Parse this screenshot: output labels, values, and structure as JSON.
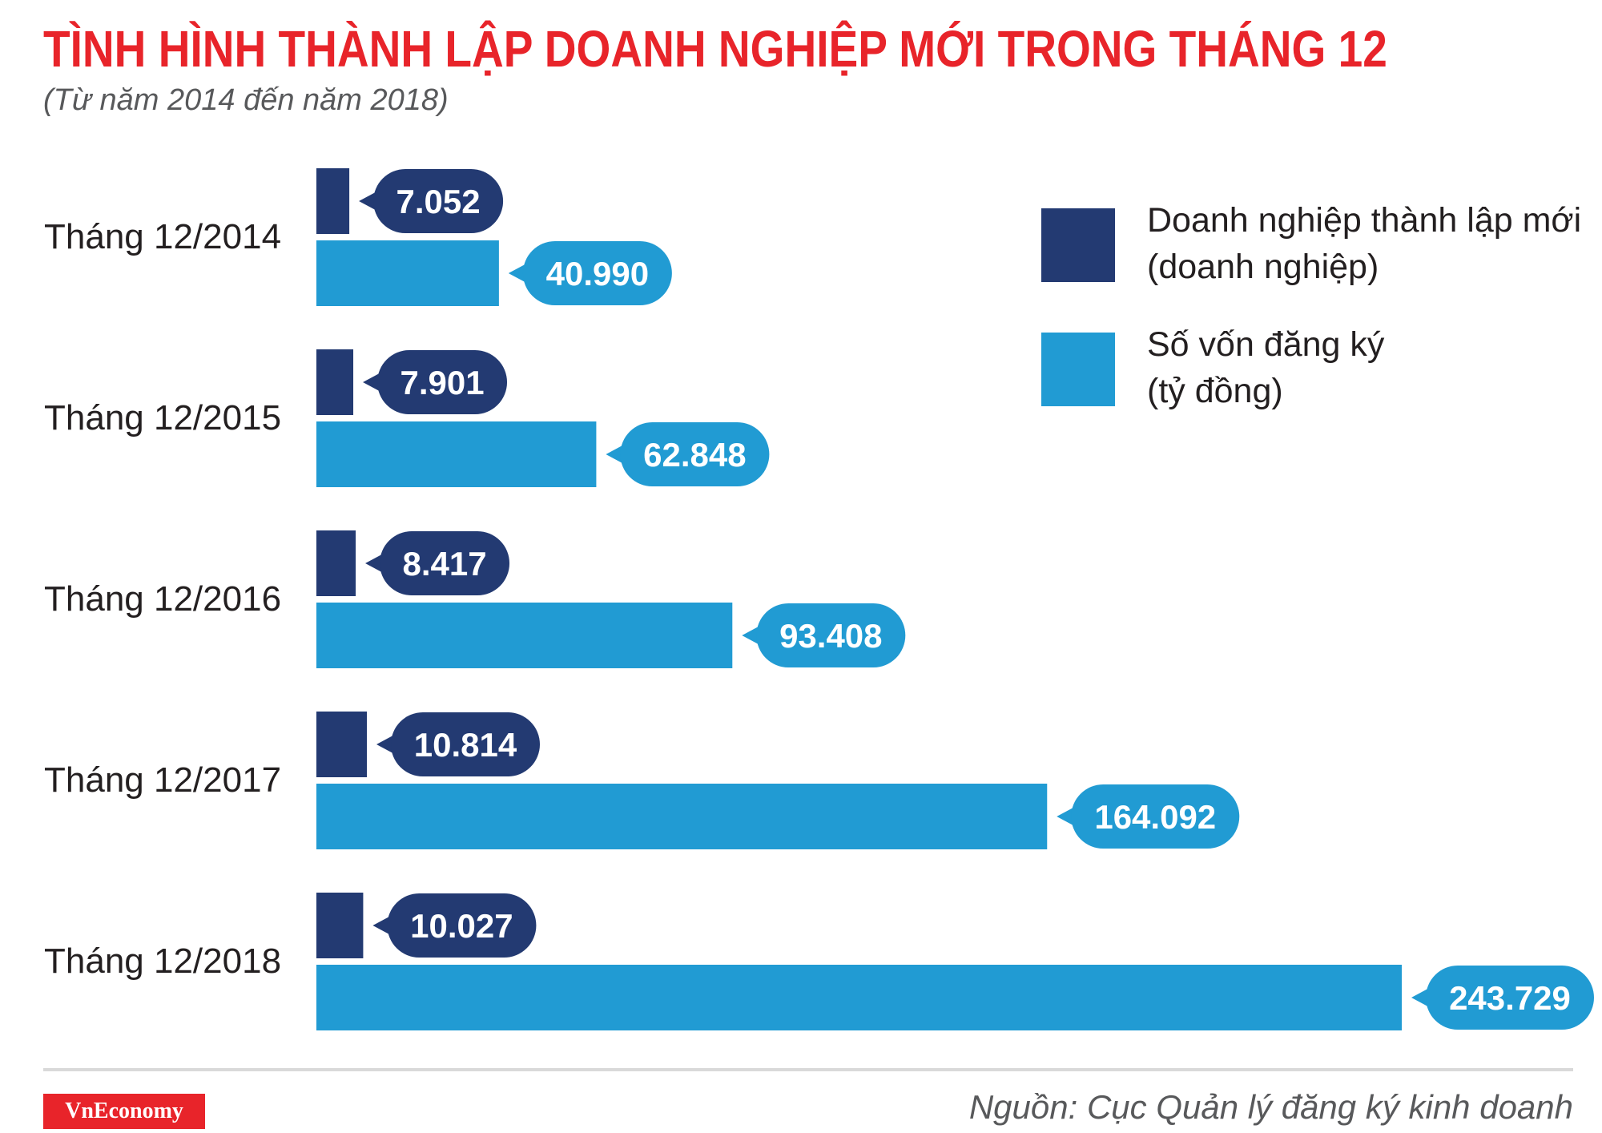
{
  "title": "TÌNH HÌNH THÀNH LẬP DOANH NGHIỆP MỚI TRONG THÁNG 12",
  "subtitle": "(Từ năm 2014 đến năm 2018)",
  "legend": [
    {
      "line1": "Doanh nghiệp thành lập mới",
      "line2": "(doanh nghiệp)",
      "color": "#233a72"
    },
    {
      "line1": "Số vốn đăng ký",
      "line2": "(tỷ đồng)",
      "color": "#219bd3"
    }
  ],
  "footer": {
    "logo": "VnEconomy",
    "source": "Nguồn: Cục Quản lý đăng ký kinh doanh"
  },
  "chart_data": {
    "type": "bar",
    "orientation": "horizontal",
    "categories": [
      "Tháng 12/2014",
      "Tháng 12/2015",
      "Tháng 12/2016",
      "Tháng 12/2017",
      "Tháng 12/2018"
    ],
    "series": [
      {
        "name": "Doanh nghiệp thành lập mới (doanh nghiệp)",
        "color": "#233a72",
        "values": [
          7052,
          7901,
          8417,
          10814,
          10027
        ],
        "labels": [
          "7.052",
          "7.901",
          "8.417",
          "10.814",
          "10.027"
        ]
      },
      {
        "name": "Số vốn đăng ký (tỷ đồng)",
        "color": "#219bd3",
        "values": [
          40990,
          62848,
          93408,
          164092,
          243729
        ],
        "labels": [
          "40.990",
          "62.848",
          "93.408",
          "164.092",
          "243.729"
        ]
      }
    ]
  }
}
